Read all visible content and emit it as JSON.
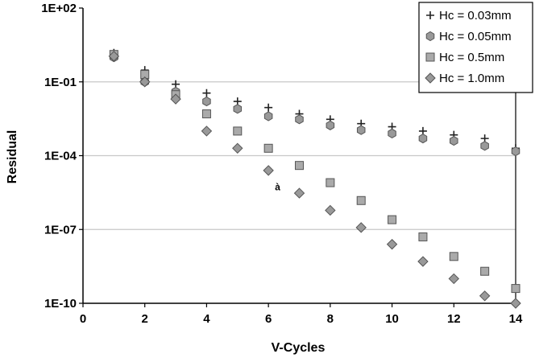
{
  "chart_data": {
    "type": "scatter",
    "title": "",
    "xlabel": "V-Cycles",
    "ylabel": "Residual",
    "x_scale": "linear",
    "y_scale": "log",
    "xlim": [
      0,
      14
    ],
    "ylim": [
      1e-10,
      100
    ],
    "x_ticks": [
      0,
      2,
      4,
      6,
      8,
      10,
      12,
      14
    ],
    "x_tick_labels": [
      "0",
      "2",
      "4",
      "6",
      "8",
      "10",
      "12",
      "14"
    ],
    "y_ticks": [
      1e-10,
      1e-07,
      0.0001,
      0.1,
      100
    ],
    "y_tick_labels": [
      "1E-10",
      "1E-07",
      "1E-04",
      "1E-01",
      "1E+02"
    ],
    "grid": "horizontal",
    "legend_position": "top-right",
    "annotation": "à",
    "annotation_point": [
      6.3,
      4e-06
    ],
    "series": [
      {
        "name": "Hc = 0.03mm",
        "marker": "plus",
        "color": "#444444",
        "x": [
          1,
          2,
          3,
          4,
          5,
          6,
          7,
          8,
          9,
          10,
          11,
          12,
          13,
          14
        ],
        "y": [
          1.5,
          0.3,
          0.08,
          0.035,
          0.016,
          0.009,
          0.005,
          0.003,
          0.002,
          0.0015,
          0.001,
          0.0007,
          0.0005,
          0.0002
        ]
      },
      {
        "name": "Hc = 0.05mm",
        "marker": "hexagon",
        "color": "#999999",
        "x": [
          1,
          2,
          3,
          4,
          5,
          6,
          7,
          8,
          9,
          10,
          11,
          12,
          13,
          14
        ],
        "y": [
          1.0,
          0.1,
          0.04,
          0.016,
          0.008,
          0.004,
          0.003,
          0.0017,
          0.0011,
          0.0008,
          0.0005,
          0.0004,
          0.00025,
          0.00015
        ]
      },
      {
        "name": "Hc = 0.5mm",
        "marker": "square",
        "color": "#aaaaaa",
        "x": [
          1,
          2,
          3,
          4,
          5,
          6,
          7,
          8,
          9,
          10,
          11,
          12,
          13,
          14
        ],
        "y": [
          1.3,
          0.2,
          0.03,
          0.005,
          0.001,
          0.0002,
          4e-05,
          8e-06,
          1.5e-06,
          2.5e-07,
          5e-08,
          8e-09,
          2e-09,
          4e-10
        ]
      },
      {
        "name": "Hc = 1.0mm",
        "marker": "diamond",
        "color": "#999999",
        "x": [
          1,
          2,
          3,
          4,
          5,
          6,
          7,
          8,
          9,
          10,
          11,
          12,
          13,
          14
        ],
        "y": [
          1.1,
          0.1,
          0.02,
          0.001,
          0.0002,
          2.5e-05,
          3e-06,
          6e-07,
          1.2e-07,
          2.5e-08,
          5e-09,
          1e-09,
          2e-10,
          1e-10
        ]
      }
    ]
  }
}
